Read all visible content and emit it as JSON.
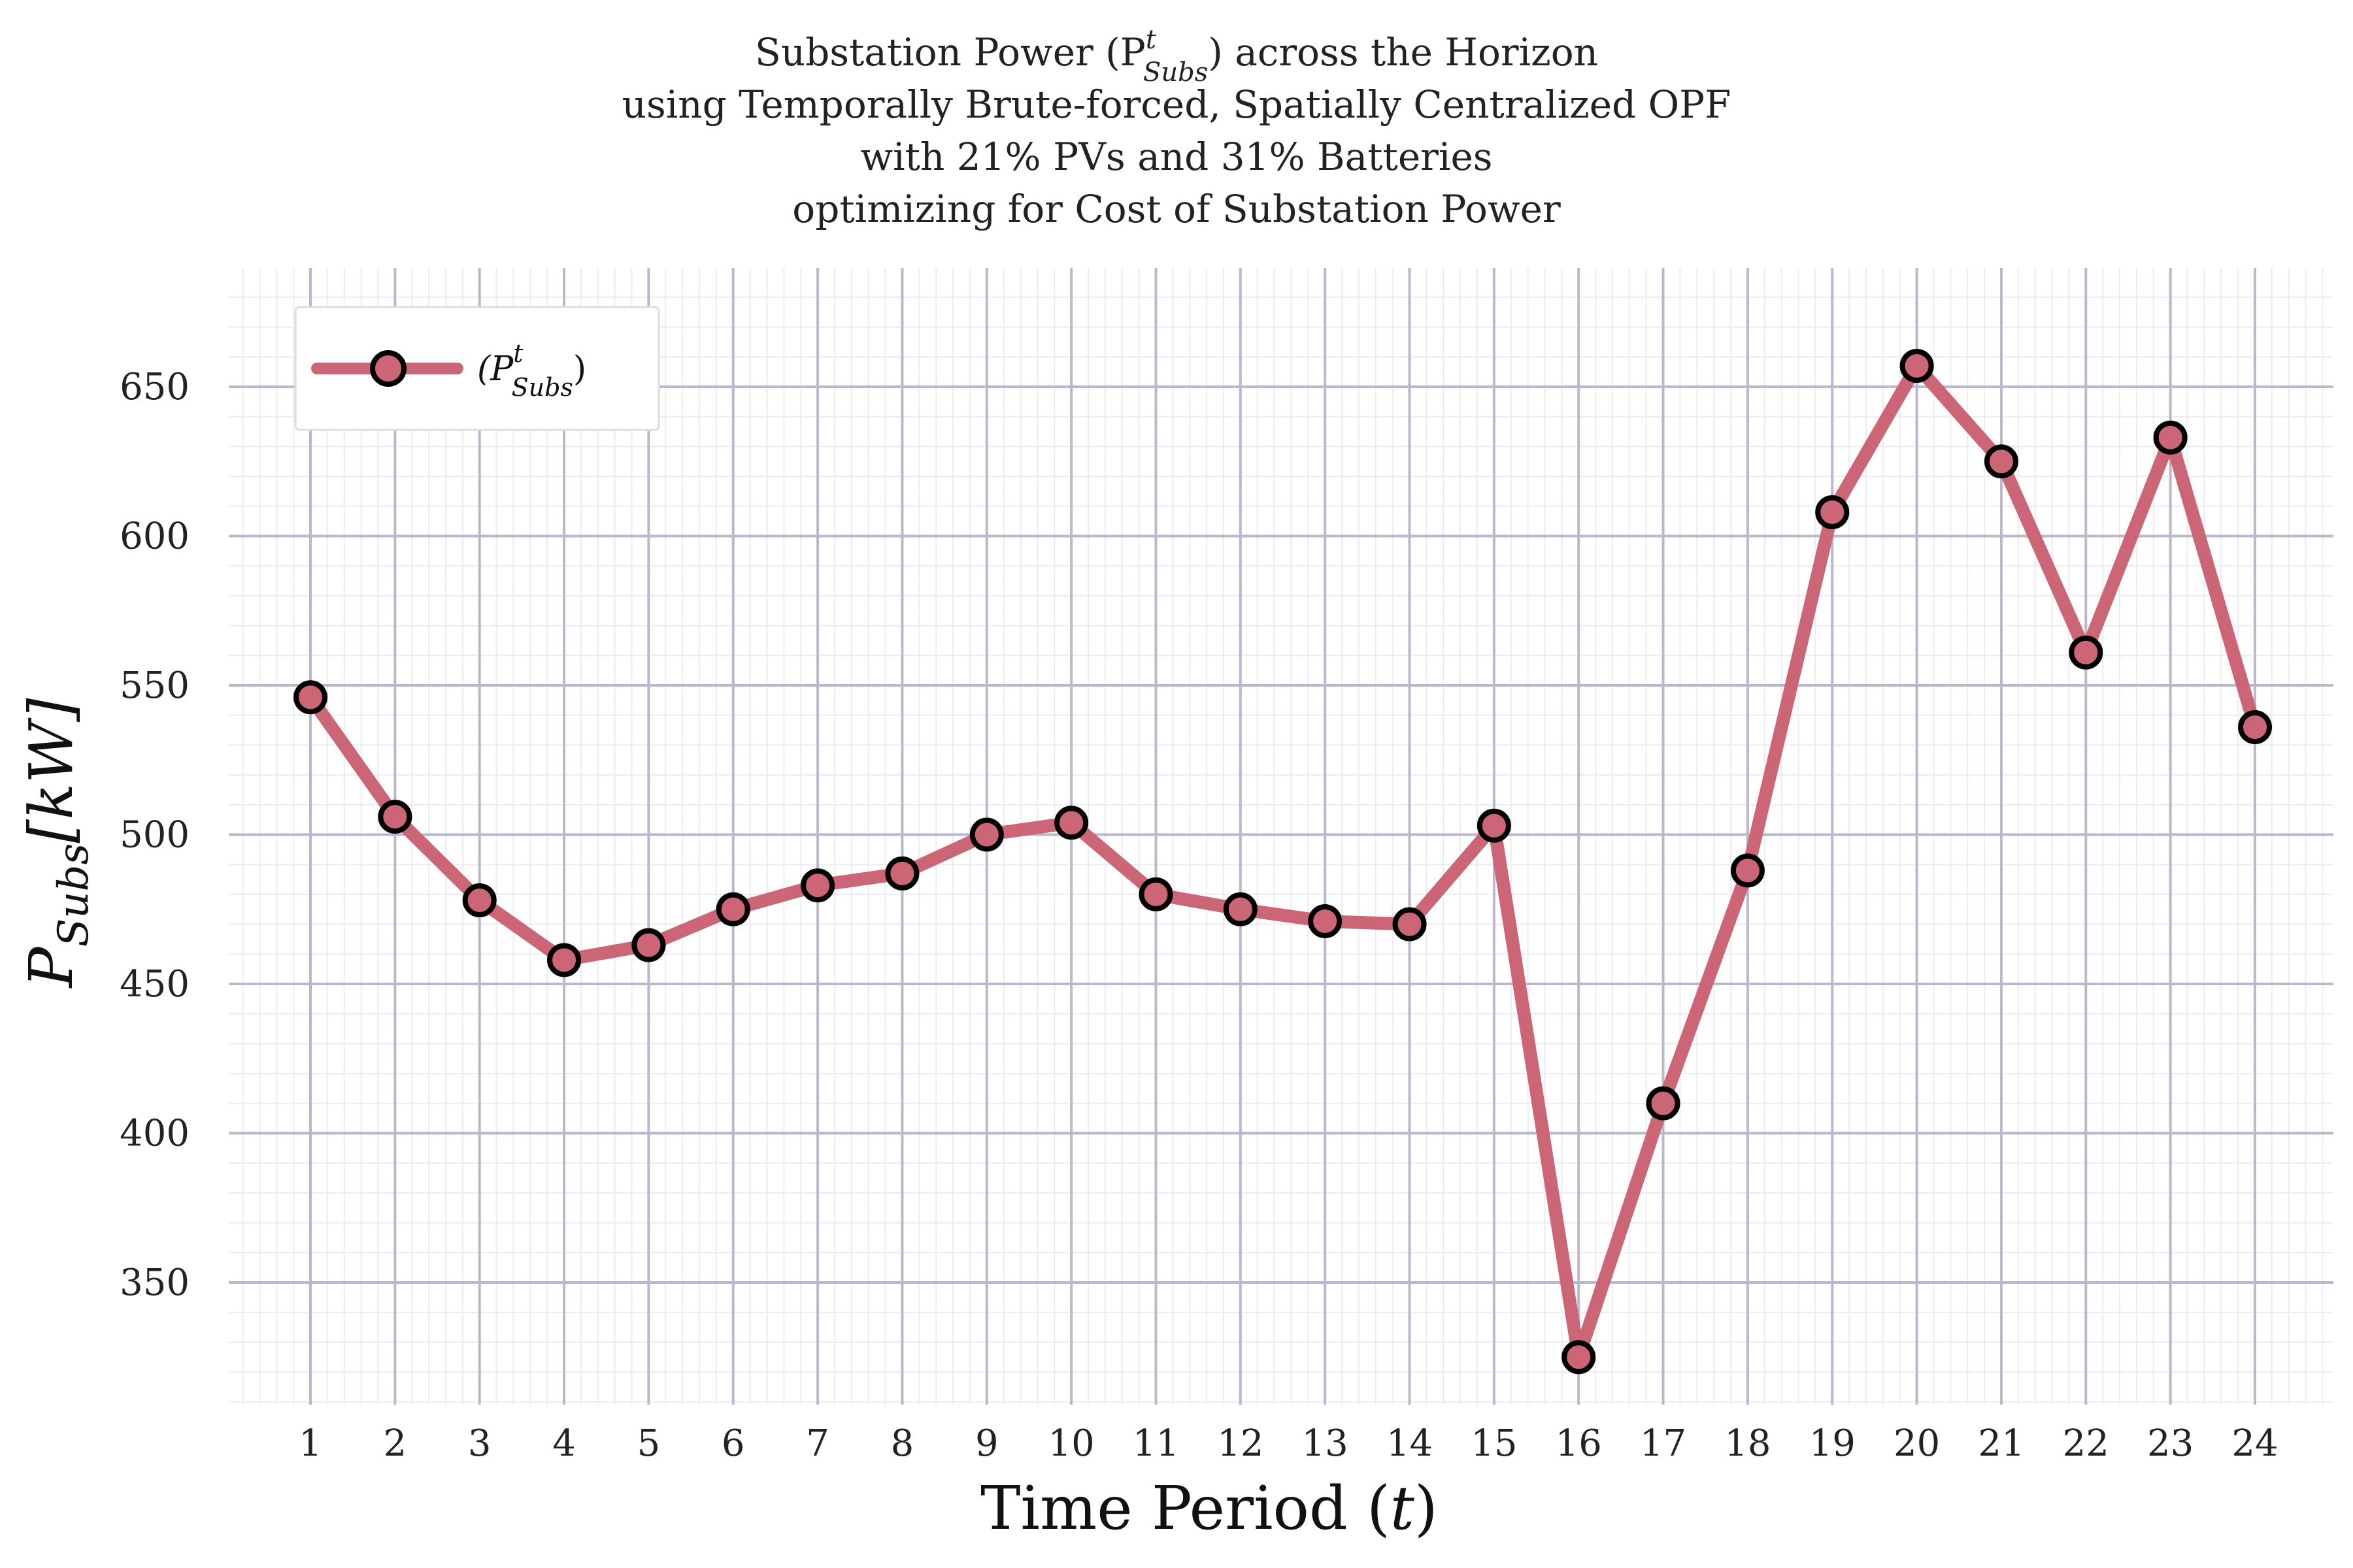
{
  "chart_data": {
    "type": "line",
    "title_lines": [
      "Substation Power (P",
      "using Temporally Brute-forced, Spatially Centralized OPF",
      "with 21% PVs and 31% Batteries",
      "optimizing for Cost of Substation Power"
    ],
    "title_sup": "t",
    "title_sub": "Subs",
    "title_line1_tail": ") across the Horizon",
    "xlabel": "Time Period (",
    "xlabel_var": "t",
    "xlabel_close": ")",
    "ylabel_main": "P",
    "ylabel_sub": "Subs",
    "ylabel_unit": "[kW]",
    "x": [
      1,
      2,
      3,
      4,
      5,
      6,
      7,
      8,
      9,
      10,
      11,
      12,
      13,
      14,
      15,
      16,
      17,
      18,
      19,
      20,
      21,
      22,
      23,
      24
    ],
    "series": [
      {
        "name": "(P",
        "name_sup": "t",
        "name_sub": "Subs",
        "name_close": ")",
        "values": [
          546,
          506,
          478,
          458,
          463,
          475,
          483,
          487,
          500,
          504,
          480,
          475,
          471,
          470,
          503,
          325,
          410,
          488,
          608,
          657,
          625,
          561,
          633,
          536
        ],
        "color": "#cc6677",
        "marker_edge": "#000000"
      }
    ],
    "yticks": [
      350,
      400,
      450,
      500,
      550,
      600,
      650
    ],
    "ylim": [
      310,
      690
    ],
    "xlim": [
      0,
      25
    ],
    "grid": true,
    "legend_position": "top-left"
  }
}
